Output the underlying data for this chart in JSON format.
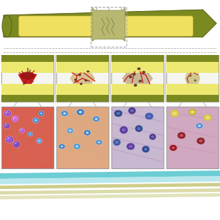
{
  "bg_color": "#ffffff",
  "bone_outer": "#7a8a20",
  "bone_inner": "#c8c870",
  "marrow": "#f0e060",
  "callus_yellow": "#e8d870",
  "panel_border": "#999999",
  "cross_bg": "#f5f5f0",
  "cross_olive_top": "#7a8820",
  "cross_olive_bot": "#7a8820",
  "cross_marrow": "#ece870",
  "fracture_red1": "#cc2020",
  "fracture_red2": "#991111",
  "fracture_dark": "#882222",
  "soft_callus": "#d8c090",
  "hard_callus": "#c8b898",
  "vessel_red": "#cc1111",
  "cell_bg1": "#d86050",
  "cell_bg2": "#e0a880",
  "cell_bg3": "#c8b8d0",
  "cell_bg4": "#d0a8c0",
  "fiber1": "#cc8855",
  "fiber2": "#d4aa80",
  "fiber3": "#b898c8",
  "fiber4": "#c898b8",
  "stripe_teal": "#5cc8d0",
  "stripe_olive1": "#b8b858",
  "stripe_olive2": "#c8c870",
  "dashed_line": "#aaaaaa",
  "connector_line": "#999999"
}
